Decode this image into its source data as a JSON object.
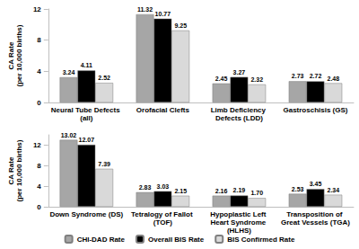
{
  "chart_data": [
    {
      "type": "bar",
      "y_label": "CA Rate\n(per 10,000 births)",
      "categories": [
        "Neural Tube Defects (all)",
        "Orofacial Clefts",
        "Limb Deficiency Defects (LDD)",
        "Gastroschisis (GS)"
      ],
      "series": [
        {
          "name": "CHI-DAD Rate",
          "color": "#a6a6a6",
          "values": [
            3.24,
            11.32,
            2.45,
            2.73
          ]
        },
        {
          "name": "Overall BIS Rate",
          "color": "#000000",
          "values": [
            4.11,
            10.77,
            3.27,
            2.72
          ]
        },
        {
          "name": "BIS Confirmed Rate",
          "color": "#d9d9d9",
          "values": [
            2.52,
            9.25,
            2.32,
            2.48
          ]
        }
      ],
      "ylim": [
        0,
        12
      ],
      "yticks": [
        0,
        4,
        8,
        12
      ],
      "grid": false,
      "data_labels": true
    },
    {
      "type": "bar",
      "y_label": "CA Rate\n(per 10,000 births)",
      "categories": [
        "Down Syndrome (DS)",
        "Tetralogy of Fallot (TOF)",
        "Hypoplastic Left Heart Syndrome (HLHS)",
        "Transposition of Great Vessels (TGA)"
      ],
      "series": [
        {
          "name": "CHI-DAD Rate",
          "color": "#a6a6a6",
          "values": [
            13.02,
            2.83,
            2.16,
            2.53
          ]
        },
        {
          "name": "Overall BIS Rate",
          "color": "#000000",
          "values": [
            12.07,
            3.03,
            2.19,
            3.45
          ]
        },
        {
          "name": "BIS Confirmed Rate",
          "color": "#d9d9d9",
          "values": [
            7.39,
            2.15,
            1.7,
            2.34
          ],
          "value_labels": [
            "7.39",
            "2.15",
            "1.70",
            "2.34"
          ]
        }
      ],
      "ylim": [
        0,
        14
      ],
      "yticks": [
        0,
        4,
        8,
        12
      ],
      "grid": false,
      "data_labels": true,
      "legend": "bottom"
    }
  ]
}
